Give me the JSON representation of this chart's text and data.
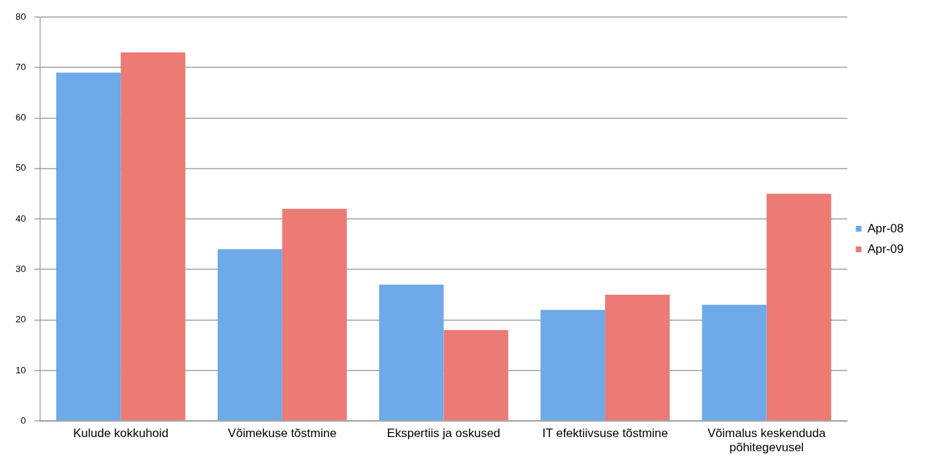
{
  "chart_data": {
    "type": "bar",
    "categories": [
      "Kulude kokkuhoid",
      "Võimekuse tõstmine",
      "Ekspertiis ja oskused",
      "IT efektiivsuse tõstmine",
      "Võimalus keskenduda põhitegevusel"
    ],
    "series": [
      {
        "name": "Apr-08",
        "color": "#6ea9e8",
        "values": [
          69,
          34,
          27,
          22,
          23
        ]
      },
      {
        "name": "Apr-09",
        "color": "#ec7a75",
        "values": [
          73,
          42,
          18,
          25,
          45
        ]
      }
    ],
    "ylim": [
      0,
      80
    ],
    "yticks": [
      0,
      10,
      20,
      30,
      40,
      50,
      60,
      70,
      80
    ],
    "grid": "y",
    "legend": "right"
  }
}
